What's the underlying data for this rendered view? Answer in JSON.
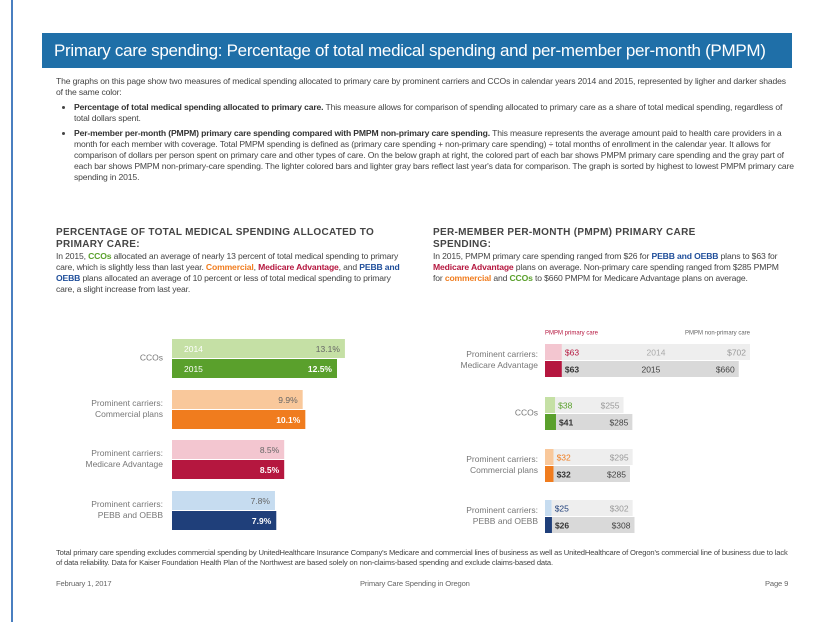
{
  "header": {
    "title": "Primary care spending: Percentage of total medical spending and per-member per-month (PMPM)"
  },
  "intro": "The graphs on this page show two measures of medical spending allocated to primary care by prominent carriers and CCOs in calendar years 2014 and 2015, represented by ligher and darker shades of the same color:",
  "bullets": [
    {
      "bold": "Percentage of total medical spending allocated to primary care.",
      "text": "This measure allows for comparison of spending allocated to primary care as a share of total medical spending, regardless of total dollars spent."
    },
    {
      "bold": "Per-member per-month (PMPM) primary care spending compared with PMPM non-primary care spending.",
      "text": "This measure represents the average amount paid to health care providers in a month for each member with coverage. Total PMPM spending is defined as (primary care spending + non-primary care spending) ÷ total months of enrollment in the calendar year. It allows for comparison of dollars per person spent on primary care and other types of care. On the below graph at right, the colored part of each bar shows PMPM primary care spending and the gray part of each bar shows PMPM non-primary-care spending. The lighter colored bars and lighter gray bars reflect last year's data for comparison. The graph is sorted by highest to lowest PMPM primary care spending in 2015."
    }
  ],
  "left": {
    "heading": "PERCENTAGE OF TOTAL MEDICAL SPENDING ALLOCATED TO PRIMARY CARE:",
    "runs": [
      {
        "text": "In 2015, "
      },
      {
        "text": "CCOs",
        "color": "#5aa02c"
      },
      {
        "text": " allocated an average of nearly 13 percent of total medical spending to primary care, which is slightly less than last year. "
      },
      {
        "text": "Commercial",
        "color": "#f07c1e"
      },
      {
        "text": ", "
      },
      {
        "text": "Medicare Advantage",
        "color": "#b5173f"
      },
      {
        "text": ", and "
      },
      {
        "text": "PEBB and OEBB",
        "color": "#1f4e9a"
      },
      {
        "text": " plans allocated an average of 10 percent or less of total medical spending to primary care, a slight increase from last year."
      }
    ]
  },
  "right": {
    "heading": "PER-MEMBER PER-MONTH (PMPM) PRIMARY CARE SPENDING:",
    "runs": [
      {
        "text": "In 2015, PMPM primary care spending ranged from $26 for "
      },
      {
        "text": "PEBB and OEBB",
        "color": "#1f4e9a"
      },
      {
        "text": " plans to $63 for "
      },
      {
        "text": "Medicare Advantage",
        "color": "#b5173f"
      },
      {
        "text": " plans on average. Non-primary care spending ranged from $285 PMPM for "
      },
      {
        "text": "commercial",
        "color": "#f07c1e"
      },
      {
        "text": " and "
      },
      {
        "text": "CCOs",
        "color": "#5aa02c"
      },
      {
        "text": " to $660 PMPM for Medicare Advantage plans on average."
      }
    ]
  },
  "chart_data": [
    {
      "type": "bar",
      "categories": [
        [
          "CCOs"
        ],
        [
          "Prominent carriers:",
          "Commercial plans"
        ],
        [
          "Prominent carriers:",
          "Medicare Advantage"
        ],
        [
          "Prominent carriers:",
          "PEBB and OEBB"
        ]
      ],
      "light_colors": [
        "#c5e0a5",
        "#f9c89b",
        "#f3c6d0",
        "#c6dcf0"
      ],
      "dark_colors": [
        "#5aa02c",
        "#f07c1e",
        "#b5173f",
        "#1f3f7a"
      ],
      "series": [
        {
          "name": "2014",
          "values": [
            13.1,
            9.9,
            8.5,
            7.8
          ],
          "value_labels": [
            "13.1%",
            "9.9%",
            "8.5%",
            "7.8%"
          ]
        },
        {
          "name": "2015",
          "values": [
            12.5,
            10.1,
            8.5,
            7.9
          ],
          "value_labels": [
            "12.5%",
            "10.1%",
            "8.5%",
            "7.9%"
          ]
        }
      ]
    },
    {
      "type": "stacked_bar",
      "legend": [
        "PMPM primary care",
        "PMPM non-primary care"
      ],
      "categories": [
        [
          "Prominent carriers:",
          "Medicare Advantage"
        ],
        [
          "CCOs"
        ],
        [
          "Prominent carriers:",
          "Commercial plans"
        ],
        [
          "Prominent carriers:",
          "PEBB and OEBB"
        ]
      ],
      "light_colors": [
        "#f3c6d0",
        "#c5e0a5",
        "#f9c89b",
        "#c6dcf0"
      ],
      "dark_colors": [
        "#b5173f",
        "#5aa02c",
        "#f07c1e",
        "#1f3f7a"
      ],
      "gray_colors": [
        "#eeeeee",
        "#d9d9d9"
      ],
      "series": [
        {
          "name": "2014",
          "primary": [
            63,
            38,
            32,
            25
          ],
          "primary_labels": [
            "$63",
            "$38",
            "$32",
            "$25"
          ],
          "non_primary": [
            702,
            255,
            295,
            302
          ],
          "non_primary_labels": [
            "$702",
            "$255",
            "$295",
            "$302"
          ]
        },
        {
          "name": "2015",
          "primary": [
            63,
            41,
            32,
            26
          ],
          "primary_labels": [
            "$63",
            "$41",
            "$32",
            "$26"
          ],
          "non_primary": [
            660,
            285,
            285,
            308
          ],
          "non_primary_labels": [
            "$660",
            "$285",
            "$285",
            "$308"
          ]
        }
      ]
    }
  ],
  "footnote": "Total primary care spending excludes commercial spending by UnitedHealthcare Insurance Company's Medicare and commercial lines of business as well as UnitedHealthcare of Oregon's commercial line of business due to lack of data reliability. Data for Kaiser Foundation Health Plan of the Northwest are based solely on non-claims-based spending and exclude claims-based data.",
  "footer": {
    "date": "February 1, 2017",
    "center": "Primary Care Spending in Oregon",
    "page": "Page 9"
  }
}
